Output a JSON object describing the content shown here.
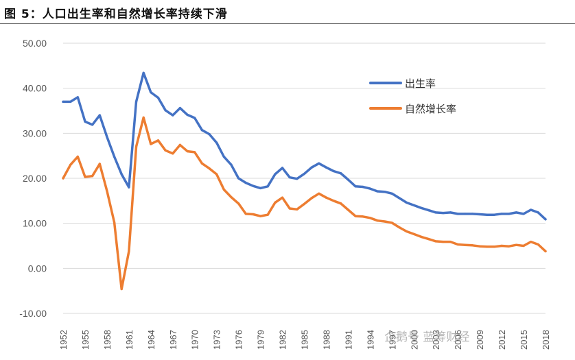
{
  "title": "图 5：人口出生率和自然增长率持续下滑",
  "watermark": "企鹅号 蓝筹财经",
  "chart_data": {
    "type": "line",
    "title": "图 5：人口出生率和自然增长率持续下滑",
    "xlabel": "",
    "ylabel": "",
    "ylim": [
      -10,
      50
    ],
    "yticks": [
      "-10.00",
      "0.00",
      "10.00",
      "20.00",
      "30.00",
      "40.00",
      "50.00"
    ],
    "xlim": [
      1952,
      2018
    ],
    "xticks": [
      "1952",
      "1955",
      "1958",
      "1961",
      "1964",
      "1967",
      "1970",
      "1973",
      "1976",
      "1979",
      "1982",
      "1985",
      "1988",
      "1991",
      "1994",
      "1997",
      "2000",
      "2003",
      "2006",
      "2009",
      "2012",
      "2015",
      "2018"
    ],
    "grid": true,
    "legend": "top-right",
    "x": [
      1952,
      1953,
      1954,
      1955,
      1956,
      1957,
      1958,
      1959,
      1960,
      1961,
      1962,
      1963,
      1964,
      1965,
      1966,
      1967,
      1968,
      1969,
      1970,
      1971,
      1972,
      1973,
      1974,
      1975,
      1976,
      1977,
      1978,
      1979,
      1980,
      1981,
      1982,
      1983,
      1984,
      1985,
      1986,
      1987,
      1988,
      1989,
      1990,
      1991,
      1992,
      1993,
      1994,
      1995,
      1996,
      1997,
      1998,
      1999,
      2000,
      2001,
      2002,
      2003,
      2004,
      2005,
      2006,
      2007,
      2008,
      2009,
      2010,
      2011,
      2012,
      2013,
      2014,
      2015,
      2016,
      2017,
      2018
    ],
    "series": [
      {
        "name": "出生率",
        "color": "#4472c4",
        "values": [
          37.0,
          37.0,
          38.0,
          32.6,
          31.9,
          34.0,
          29.2,
          24.8,
          20.9,
          18.0,
          37.0,
          43.4,
          39.1,
          37.9,
          35.1,
          34.0,
          35.6,
          34.1,
          33.4,
          30.7,
          29.8,
          27.9,
          24.8,
          23.0,
          20.0,
          19.0,
          18.3,
          17.8,
          18.2,
          20.9,
          22.3,
          20.2,
          19.9,
          21.0,
          22.4,
          23.3,
          22.4,
          21.6,
          21.1,
          19.7,
          18.2,
          18.1,
          17.7,
          17.1,
          17.0,
          16.6,
          15.6,
          14.6,
          14.0,
          13.4,
          12.9,
          12.4,
          12.3,
          12.4,
          12.1,
          12.1,
          12.1,
          12.0,
          11.9,
          11.9,
          12.1,
          12.1,
          12.4,
          12.1,
          13.0,
          12.4,
          10.9
        ]
      },
      {
        "name": "自然增长率",
        "color": "#ed7d31",
        "values": [
          20.0,
          23.0,
          24.8,
          20.3,
          20.5,
          23.2,
          17.2,
          10.2,
          -4.6,
          3.8,
          27.0,
          33.5,
          27.6,
          28.4,
          26.2,
          25.5,
          27.4,
          26.0,
          25.8,
          23.3,
          22.2,
          20.9,
          17.5,
          15.8,
          14.4,
          12.1,
          12.0,
          11.6,
          11.9,
          14.6,
          15.7,
          13.3,
          13.1,
          14.3,
          15.6,
          16.6,
          15.7,
          15.0,
          14.4,
          13.0,
          11.6,
          11.5,
          11.2,
          10.6,
          10.4,
          10.1,
          9.1,
          8.2,
          7.6,
          7.0,
          6.5,
          6.0,
          5.9,
          5.9,
          5.3,
          5.2,
          5.1,
          4.9,
          4.8,
          4.8,
          5.0,
          4.9,
          5.2,
          5.0,
          5.9,
          5.3,
          3.8
        ]
      }
    ]
  }
}
